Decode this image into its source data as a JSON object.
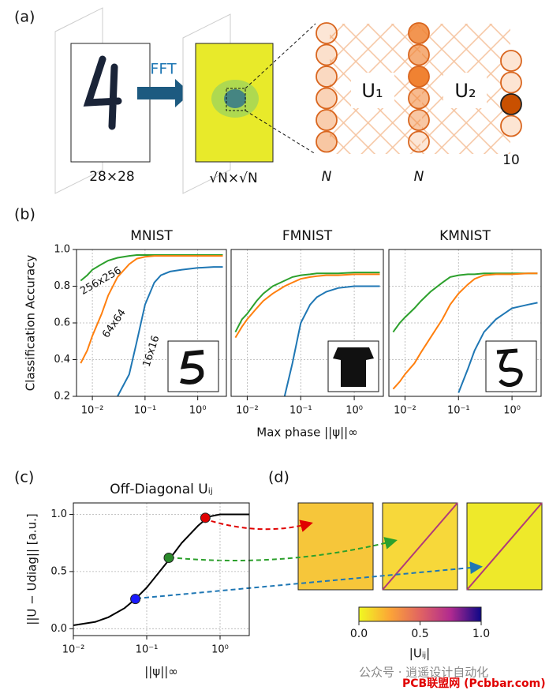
{
  "panel_labels": [
    "(a)",
    "(b)",
    "(c)",
    "(d)"
  ],
  "diagram": {
    "fft": "FFT",
    "input_size": "28×28",
    "fft_size": "√N×√N",
    "u1": "U₁",
    "u2": "U₂",
    "n_in": "N",
    "n_mid": "N",
    "n_out": "10"
  },
  "chart_data": [
    {
      "type": "line",
      "title": "MNIST",
      "ylabel": "Classification Accuracy",
      "xlog": true,
      "grid": true,
      "xlim": [
        0.005,
        3.5
      ],
      "ylim": [
        0.2,
        1.0
      ],
      "xticks": [
        {
          "value": 0.01,
          "label": "10⁻²"
        },
        {
          "value": 0.1,
          "label": "10⁻¹"
        },
        {
          "value": 1,
          "label": "10⁰"
        }
      ],
      "yticks": [
        0.2,
        0.4,
        0.6,
        0.8,
        {
          "value": 1.0,
          "label": "1.0"
        }
      ],
      "x": [
        0.006,
        0.008,
        0.01,
        0.015,
        0.02,
        0.03,
        0.05,
        0.07,
        0.1,
        0.15,
        0.2,
        0.3,
        0.5,
        1,
        2,
        3
      ],
      "series": [
        {
          "name": "256x256",
          "color": "#2ca02c",
          "values": [
            0.83,
            0.86,
            0.89,
            0.92,
            0.94,
            0.955,
            0.965,
            0.97,
            0.97,
            0.97,
            0.97,
            0.97,
            0.97,
            0.97,
            0.97,
            0.97
          ]
        },
        {
          "name": "64x64",
          "color": "#ff7f0e",
          "values": [
            0.38,
            0.45,
            0.53,
            0.65,
            0.75,
            0.85,
            0.92,
            0.95,
            0.96,
            0.965,
            0.965,
            0.965,
            0.965,
            0.965,
            0.965,
            0.965
          ]
        },
        {
          "name": "16x16",
          "color": "#1f77b4",
          "values": [
            null,
            null,
            null,
            null,
            null,
            0.2,
            0.32,
            0.5,
            0.7,
            0.82,
            0.86,
            0.88,
            0.89,
            0.9,
            0.905,
            0.905
          ]
        }
      ]
    },
    {
      "type": "line",
      "title": "FMNIST",
      "xlabel": "Max phase ||ψ||∞",
      "xlog": true,
      "grid": true,
      "xlim": [
        0.005,
        3.5
      ],
      "ylim": [
        0.2,
        1.0
      ],
      "xticks": [
        {
          "value": 0.01,
          "label": "10⁻²"
        },
        {
          "value": 0.1,
          "label": "10⁻¹"
        },
        {
          "value": 1,
          "label": "10⁰"
        }
      ],
      "yticks": [
        0.2,
        0.4,
        0.6,
        0.8,
        {
          "value": 1.0,
          "label": "1.0"
        }
      ],
      "x": [
        0.006,
        0.008,
        0.01,
        0.015,
        0.02,
        0.03,
        0.05,
        0.07,
        0.1,
        0.15,
        0.2,
        0.3,
        0.5,
        1,
        2,
        3
      ],
      "series": [
        {
          "color": "#2ca02c",
          "values": [
            0.55,
            0.62,
            0.65,
            0.72,
            0.76,
            0.8,
            0.83,
            0.85,
            0.86,
            0.865,
            0.87,
            0.87,
            0.87,
            0.875,
            0.875,
            0.875
          ]
        },
        {
          "color": "#ff7f0e",
          "values": [
            0.52,
            0.58,
            0.62,
            0.68,
            0.72,
            0.76,
            0.8,
            0.82,
            0.84,
            0.85,
            0.855,
            0.86,
            0.86,
            0.865,
            0.865,
            0.865
          ]
        },
        {
          "color": "#1f77b4",
          "values": [
            null,
            null,
            null,
            null,
            null,
            null,
            0.2,
            0.38,
            0.6,
            0.7,
            0.74,
            0.77,
            0.79,
            0.8,
            0.8,
            0.8
          ]
        }
      ]
    },
    {
      "type": "line",
      "title": "KMNIST",
      "xlog": true,
      "grid": true,
      "xlim": [
        0.005,
        3.5
      ],
      "ylim": [
        0.2,
        1.0
      ],
      "xticks": [
        {
          "value": 0.01,
          "label": "10⁻²"
        },
        {
          "value": 0.1,
          "label": "10⁻¹"
        },
        {
          "value": 1,
          "label": "10⁰"
        }
      ],
      "yticks": [
        0.2,
        0.4,
        0.6,
        0.8,
        {
          "value": 1.0,
          "label": "1.0"
        }
      ],
      "x": [
        0.006,
        0.008,
        0.01,
        0.015,
        0.02,
        0.03,
        0.05,
        0.07,
        0.1,
        0.15,
        0.2,
        0.3,
        0.5,
        1,
        2,
        3
      ],
      "series": [
        {
          "color": "#2ca02c",
          "values": [
            0.55,
            0.6,
            0.63,
            0.68,
            0.72,
            0.77,
            0.82,
            0.85,
            0.86,
            0.865,
            0.865,
            0.87,
            0.87,
            0.87,
            0.87,
            0.87
          ]
        },
        {
          "color": "#ff7f0e",
          "values": [
            0.24,
            0.28,
            0.32,
            0.38,
            0.44,
            0.52,
            0.62,
            0.7,
            0.76,
            0.81,
            0.84,
            0.86,
            0.865,
            0.865,
            0.87,
            0.87
          ]
        },
        {
          "color": "#1f77b4",
          "values": [
            null,
            null,
            null,
            null,
            null,
            null,
            null,
            null,
            0.22,
            0.35,
            0.45,
            0.55,
            0.62,
            0.68,
            0.7,
            0.71
          ]
        }
      ]
    },
    {
      "type": "line",
      "title": "Off-Diagonal Uᵢⱼ",
      "ylabel": "||U − Udiag|| [a.u.]",
      "xlabel": "||ψ||∞",
      "xlog": true,
      "grid": true,
      "xlim": [
        0.01,
        2.5
      ],
      "ylim": [
        -0.06,
        1.1
      ],
      "xticks": [
        {
          "value": 0.01,
          "label": "10⁻²"
        },
        {
          "value": 0.1,
          "label": "10⁻¹"
        },
        {
          "value": 1,
          "label": "10⁰"
        }
      ],
      "yticks": [
        {
          "value": 0,
          "label": "0.0"
        },
        0.5,
        {
          "value": 1,
          "label": "1.0"
        }
      ],
      "x": [
        0.01,
        0.02,
        0.03,
        0.05,
        0.07,
        0.1,
        0.15,
        0.2,
        0.3,
        0.5,
        0.7,
        1,
        1.5,
        2,
        2.5
      ],
      "series": [
        {
          "color": "#000000",
          "values": [
            0.03,
            0.06,
            0.1,
            0.18,
            0.26,
            0.36,
            0.5,
            0.6,
            0.75,
            0.9,
            0.98,
            1.0,
            1.0,
            1.0,
            1.0
          ]
        }
      ],
      "markers": {
        "x": [
          0.07,
          0.2,
          0.63
        ],
        "values": [
          0.26,
          0.62,
          0.97
        ],
        "colors": [
          "#1a1aff",
          "#2a8a2a",
          "#e00000"
        ]
      }
    }
  ],
  "colorbar": {
    "ticks": [
      {
        "value": 0,
        "label": "0.0"
      },
      0.5,
      {
        "value": 1,
        "label": "1.0"
      }
    ],
    "label": "|Uᵢⱼ|"
  },
  "watermark": [
    "公众号 · 逍遥设计自动化",
    "PCB联盟网 (Pcbbar.com)"
  ]
}
